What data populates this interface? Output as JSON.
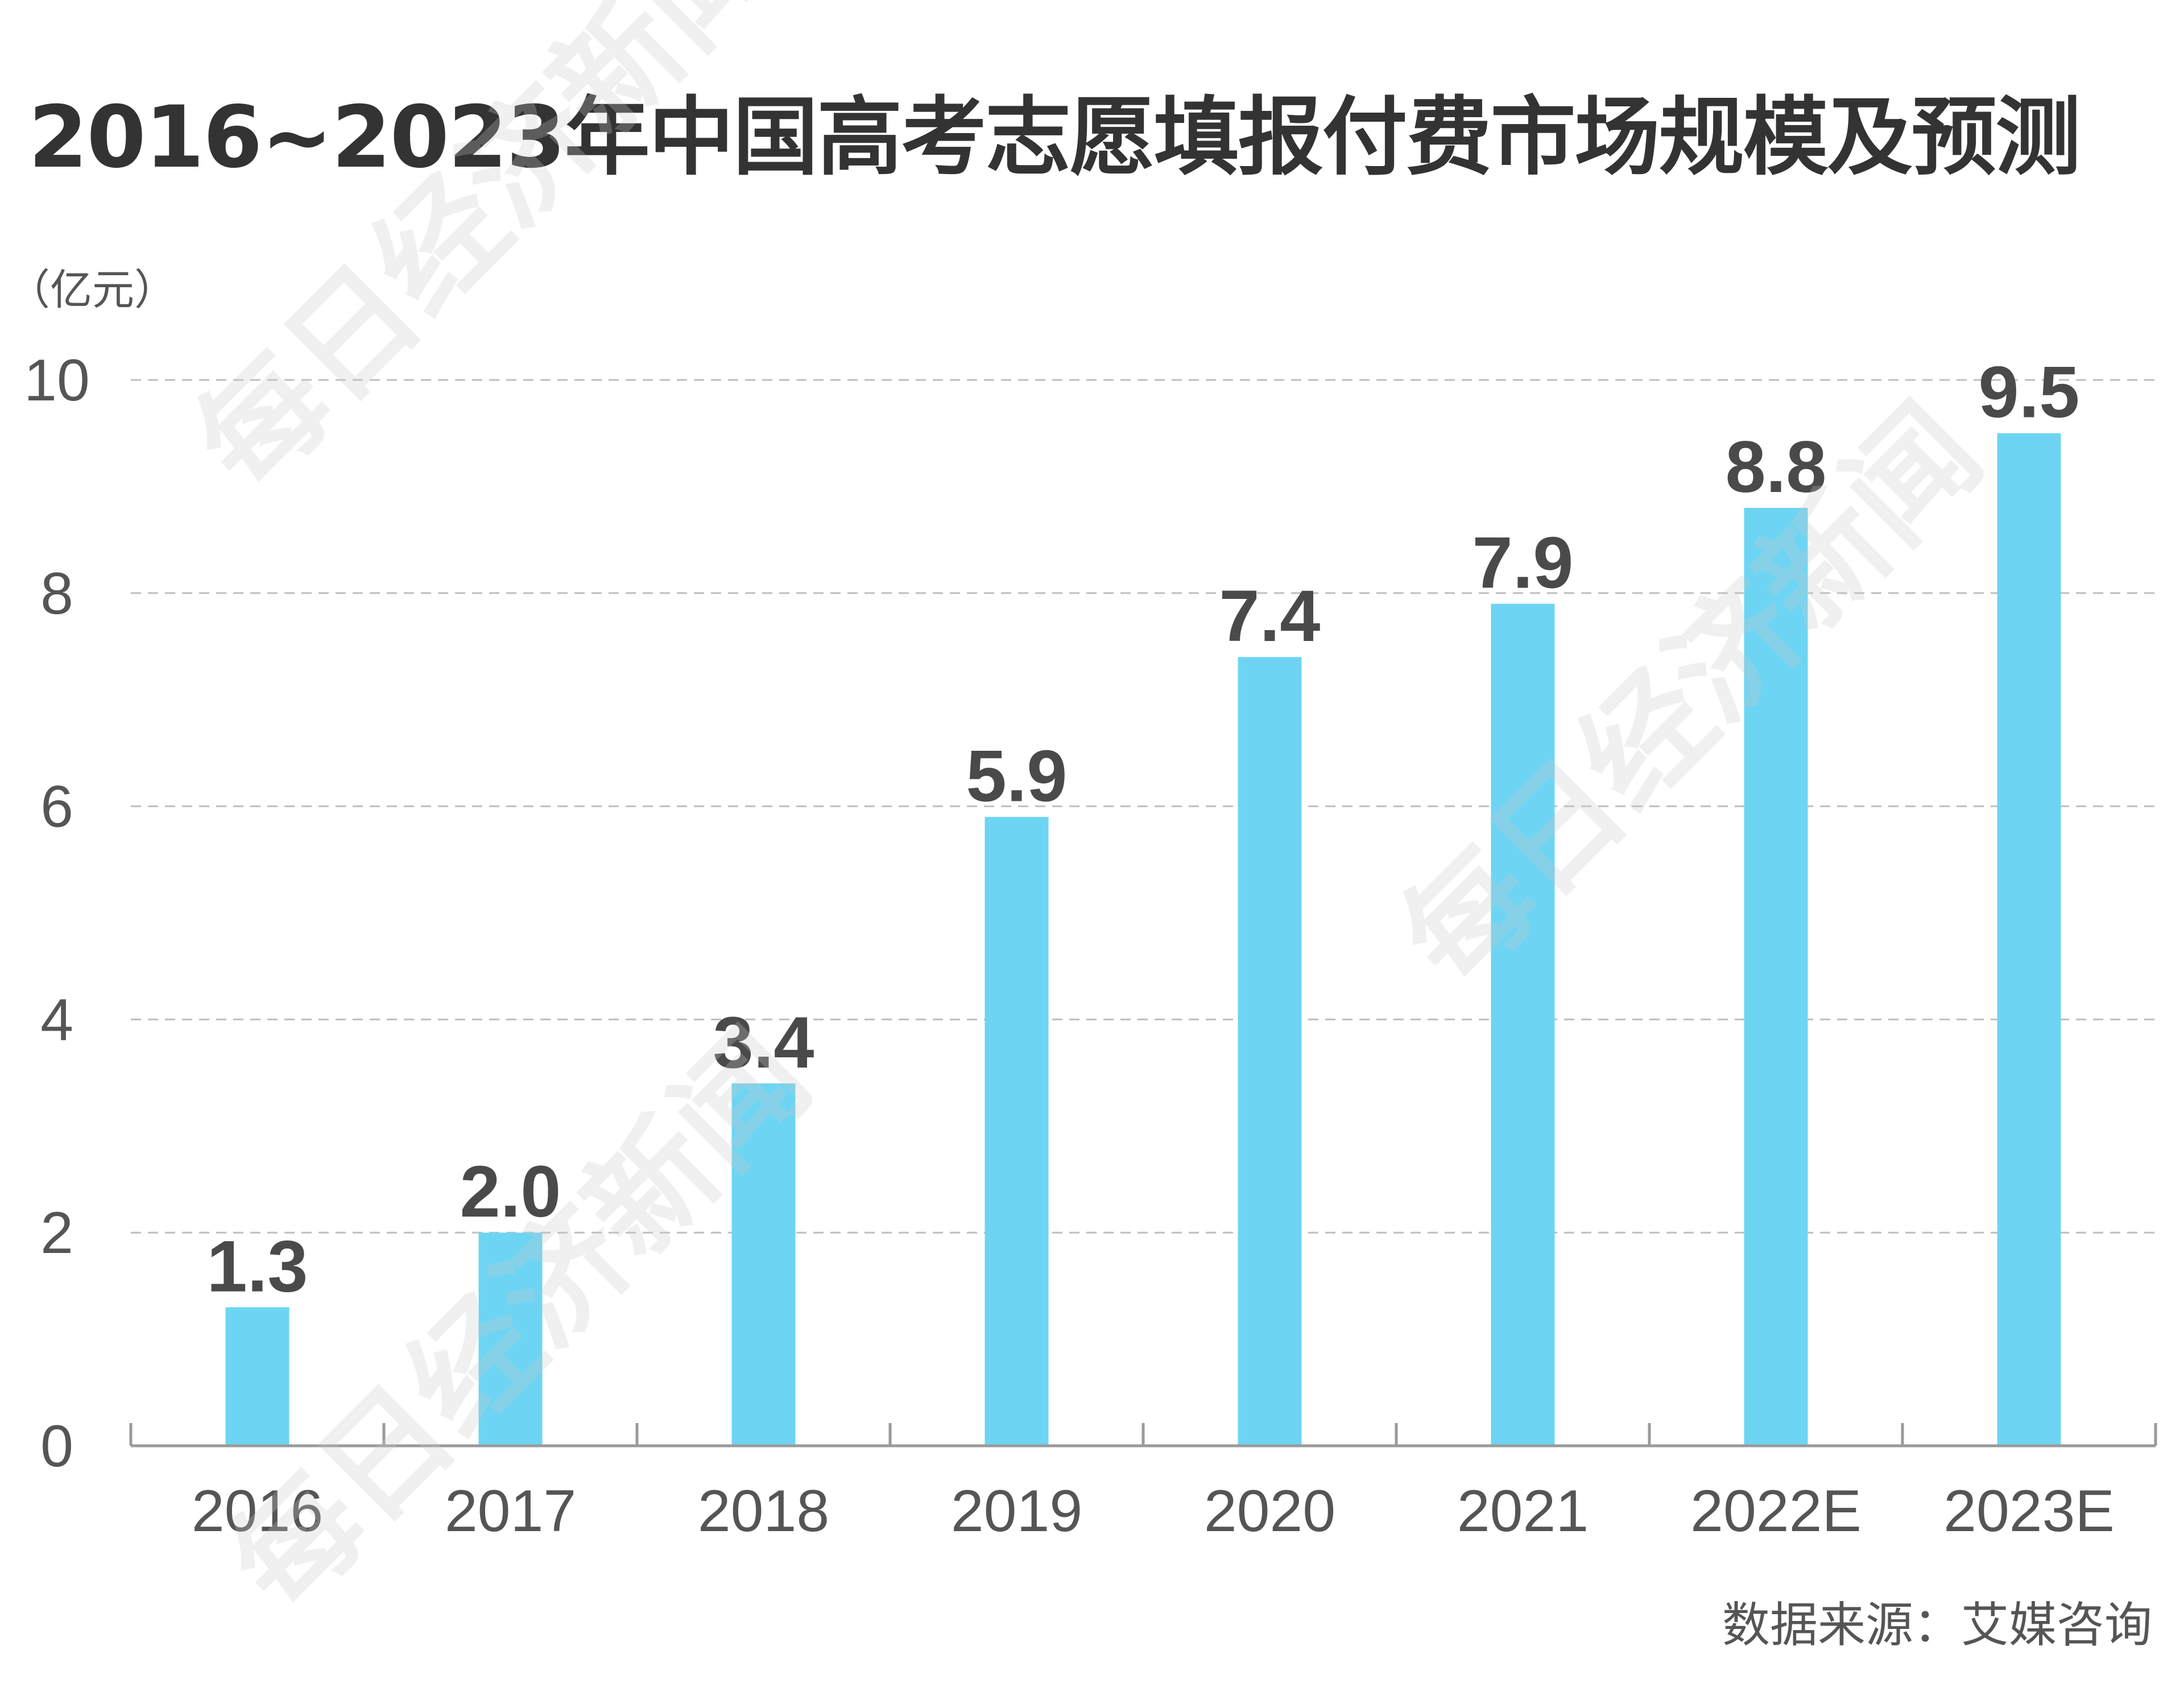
{
  "chart_data": {
    "type": "bar",
    "title": "2016~2023年中国高考志愿填报付费市场规模及预测",
    "unit": "（亿元）",
    "categories": [
      "2016",
      "2017",
      "2018",
      "2019",
      "2020",
      "2021",
      "2022E",
      "2023E"
    ],
    "values": [
      1.3,
      2.0,
      3.4,
      5.9,
      7.4,
      7.9,
      8.8,
      9.5
    ],
    "value_labels": [
      "1.3",
      "2.0",
      "3.4",
      "5.9",
      "7.4",
      "7.9",
      "8.8",
      "9.5"
    ],
    "yticks": [
      0,
      2,
      4,
      6,
      8,
      10
    ],
    "ylim": [
      0,
      10
    ],
    "grid": true,
    "bar_color": "#6dd5f3"
  },
  "source": "数据来源：艾媒咨询",
  "watermark": "每日经济新闻"
}
